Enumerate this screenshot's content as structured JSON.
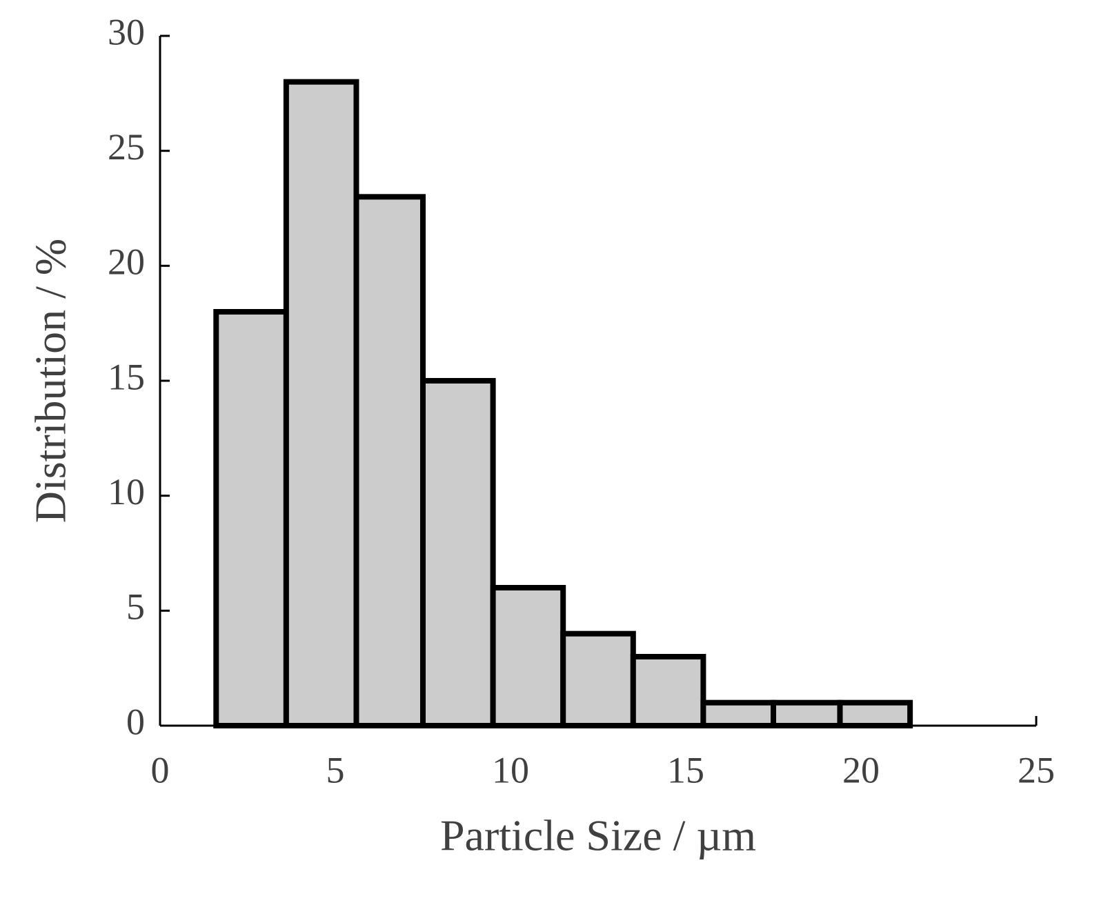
{
  "chart_data": {
    "type": "histogram",
    "x_label": "Particle Size / µm",
    "y_label": "Distribution / %",
    "bins": [
      1.6,
      3.6,
      5.6,
      7.5,
      9.5,
      11.5,
      13.5,
      15.5,
      17.5,
      19.4,
      21.4
    ],
    "values": [
      18,
      28,
      23,
      15,
      6,
      4,
      3,
      1,
      1,
      1
    ],
    "color": "#cccccc",
    "edge_color": "#000000",
    "xlim": [
      0,
      25
    ],
    "xticks": [
      0,
      5,
      10,
      15,
      20,
      25
    ],
    "ylim": [
      0,
      30
    ],
    "yticks": [
      0,
      5,
      10,
      15,
      20,
      25,
      30
    ],
    "grid": false
  }
}
